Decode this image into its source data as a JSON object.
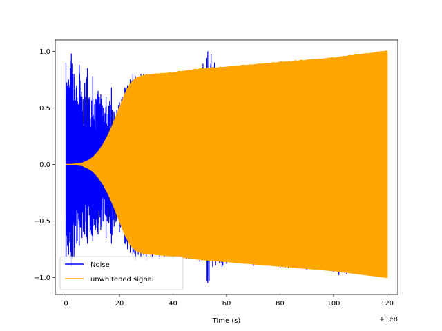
{
  "chart_data": {
    "type": "line",
    "title": "",
    "xlabel": "Time (s)",
    "ylabel": "",
    "x_offset_label": "+1e8",
    "xlim": [
      -4,
      124
    ],
    "ylim": [
      -1.15,
      1.1
    ],
    "x_ticks": [
      0,
      20,
      40,
      60,
      80,
      100,
      120
    ],
    "x_tick_labels": [
      "0",
      "20",
      "40",
      "60",
      "80",
      "100",
      "120"
    ],
    "y_ticks": [
      -1.0,
      -0.5,
      0.0,
      0.5,
      1.0
    ],
    "y_tick_labels": [
      "−1.0",
      "−0.5",
      "0.0",
      "0.5",
      "1.0"
    ],
    "grid": false,
    "legend_position": "lower-left",
    "series": [
      {
        "name": "Noise",
        "color": "#0000ff",
        "kind": "noise",
        "x": [
          0,
          1,
          2,
          3,
          4,
          5,
          6,
          7,
          8,
          9,
          10,
          11,
          12,
          13,
          14,
          15,
          16,
          17,
          18,
          19,
          20,
          21,
          22,
          23,
          24,
          25,
          26,
          27,
          28,
          29,
          30,
          35,
          40,
          45,
          50,
          53,
          60,
          70,
          80,
          90,
          100,
          102,
          110,
          120
        ],
        "upper": [
          0.9,
          0.75,
          0.98,
          0.8,
          0.7,
          0.88,
          0.6,
          0.72,
          0.85,
          0.6,
          0.78,
          0.58,
          0.65,
          0.62,
          0.5,
          0.6,
          0.52,
          0.68,
          0.45,
          0.48,
          0.55,
          0.6,
          0.68,
          0.7,
          0.75,
          0.8,
          0.78,
          0.77,
          0.8,
          0.8,
          0.8,
          0.8,
          0.81,
          0.82,
          0.83,
          1.0,
          0.85,
          0.88,
          0.89,
          0.9,
          0.92,
          0.93,
          0.95,
          0.98
        ],
        "lower": [
          -0.88,
          -0.8,
          -0.9,
          -0.82,
          -0.7,
          -0.72,
          -0.65,
          -0.62,
          -0.7,
          -0.6,
          -0.68,
          -0.58,
          -0.62,
          -0.58,
          -0.5,
          -0.65,
          -0.52,
          -0.7,
          -0.55,
          -0.5,
          -0.6,
          -0.55,
          -0.7,
          -0.75,
          -0.78,
          -0.8,
          -0.85,
          -0.8,
          -0.82,
          -0.8,
          -0.85,
          -0.84,
          -0.83,
          -0.84,
          -0.86,
          -1.05,
          -0.88,
          -0.9,
          -0.92,
          -0.93,
          -0.95,
          -0.98,
          -0.97,
          -0.99
        ]
      },
      {
        "name": "unwhitened signal",
        "color": "#ffa500",
        "kind": "envelope",
        "x": [
          0,
          2,
          4,
          6,
          8,
          10,
          12,
          14,
          16,
          18,
          20,
          22,
          24,
          26,
          28,
          30,
          40,
          50,
          60,
          70,
          80,
          90,
          100,
          110,
          120
        ],
        "upper": [
          0.0,
          0.0,
          0.005,
          0.01,
          0.03,
          0.06,
          0.11,
          0.18,
          0.27,
          0.38,
          0.5,
          0.62,
          0.71,
          0.76,
          0.78,
          0.79,
          0.81,
          0.84,
          0.86,
          0.88,
          0.9,
          0.92,
          0.94,
          0.97,
          1.0
        ],
        "lower": [
          0.0,
          0.0,
          -0.005,
          -0.01,
          -0.03,
          -0.06,
          -0.11,
          -0.18,
          -0.27,
          -0.38,
          -0.5,
          -0.62,
          -0.71,
          -0.76,
          -0.78,
          -0.79,
          -0.81,
          -0.84,
          -0.86,
          -0.88,
          -0.9,
          -0.92,
          -0.94,
          -0.97,
          -1.0
        ]
      }
    ]
  }
}
